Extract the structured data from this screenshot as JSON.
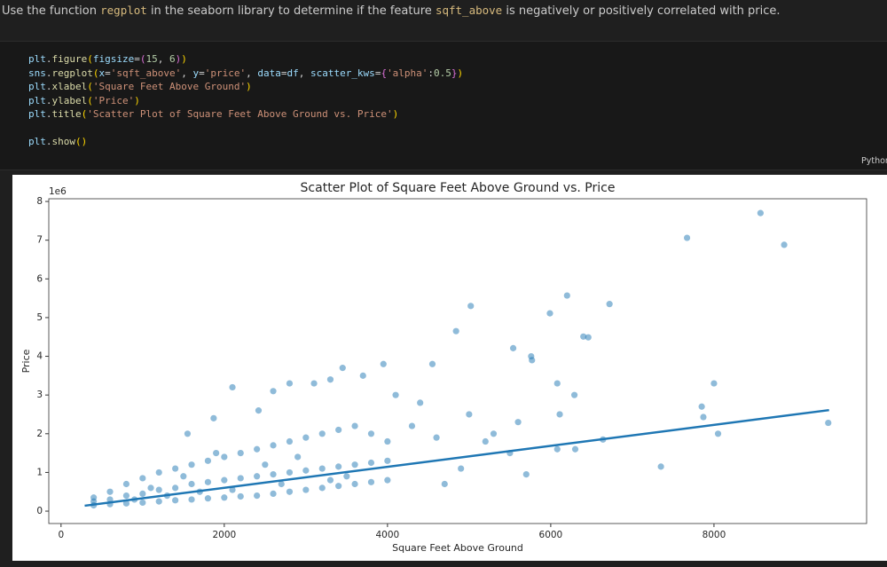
{
  "markdown": {
    "segments": [
      {
        "text": "Use the function ",
        "code": false
      },
      {
        "text": "regplot",
        "code": true
      },
      {
        "text": " in the seaborn library to determine if the feature ",
        "code": false
      },
      {
        "text": "sqft_above",
        "code": true
      },
      {
        "text": " is negatively or positively correlated with price.",
        "code": false
      }
    ]
  },
  "code": {
    "language": "Python",
    "lines": [
      {
        "tokens": [
          {
            "text": "plt",
            "color": "#9cdcfe"
          },
          {
            "text": ".",
            "color": "#d4d4d4"
          },
          {
            "text": "figure",
            "color": "#dcdcaa"
          },
          {
            "text": "(",
            "color": "#ffd700"
          },
          {
            "text": "figsize",
            "color": "#9cdcfe"
          },
          {
            "text": "=",
            "color": "#d4d4d4"
          },
          {
            "text": "(",
            "color": "#da70d6"
          },
          {
            "text": "15",
            "color": "#b5cea8"
          },
          {
            "text": ", ",
            "color": "#d4d4d4"
          },
          {
            "text": "6",
            "color": "#b5cea8"
          },
          {
            "text": ")",
            "color": "#da70d6"
          },
          {
            "text": ")",
            "color": "#ffd700"
          }
        ]
      },
      {
        "tokens": [
          {
            "text": "sns",
            "color": "#9cdcfe"
          },
          {
            "text": ".",
            "color": "#d4d4d4"
          },
          {
            "text": "regplot",
            "color": "#dcdcaa"
          },
          {
            "text": "(",
            "color": "#ffd700"
          },
          {
            "text": "x",
            "color": "#9cdcfe"
          },
          {
            "text": "=",
            "color": "#d4d4d4"
          },
          {
            "text": "'sqft_above'",
            "color": "#ce9178"
          },
          {
            "text": ", ",
            "color": "#d4d4d4"
          },
          {
            "text": "y",
            "color": "#9cdcfe"
          },
          {
            "text": "=",
            "color": "#d4d4d4"
          },
          {
            "text": "'price'",
            "color": "#ce9178"
          },
          {
            "text": ", ",
            "color": "#d4d4d4"
          },
          {
            "text": "data",
            "color": "#9cdcfe"
          },
          {
            "text": "=",
            "color": "#d4d4d4"
          },
          {
            "text": "df",
            "color": "#9cdcfe"
          },
          {
            "text": ", ",
            "color": "#d4d4d4"
          },
          {
            "text": "scatter_kws",
            "color": "#9cdcfe"
          },
          {
            "text": "=",
            "color": "#d4d4d4"
          },
          {
            "text": "{",
            "color": "#da70d6"
          },
          {
            "text": "'alpha'",
            "color": "#ce9178"
          },
          {
            "text": ":",
            "color": "#d4d4d4"
          },
          {
            "text": "0.5",
            "color": "#b5cea8"
          },
          {
            "text": "}",
            "color": "#da70d6"
          },
          {
            "text": ")",
            "color": "#ffd700"
          }
        ]
      },
      {
        "tokens": [
          {
            "text": "plt",
            "color": "#9cdcfe"
          },
          {
            "text": ".",
            "color": "#d4d4d4"
          },
          {
            "text": "xlabel",
            "color": "#dcdcaa"
          },
          {
            "text": "(",
            "color": "#ffd700"
          },
          {
            "text": "'Square Feet Above Ground'",
            "color": "#ce9178"
          },
          {
            "text": ")",
            "color": "#ffd700"
          }
        ]
      },
      {
        "tokens": [
          {
            "text": "plt",
            "color": "#9cdcfe"
          },
          {
            "text": ".",
            "color": "#d4d4d4"
          },
          {
            "text": "ylabel",
            "color": "#dcdcaa"
          },
          {
            "text": "(",
            "color": "#ffd700"
          },
          {
            "text": "'Price'",
            "color": "#ce9178"
          },
          {
            "text": ")",
            "color": "#ffd700"
          }
        ]
      },
      {
        "tokens": [
          {
            "text": "plt",
            "color": "#9cdcfe"
          },
          {
            "text": ".",
            "color": "#d4d4d4"
          },
          {
            "text": "title",
            "color": "#dcdcaa"
          },
          {
            "text": "(",
            "color": "#ffd700"
          },
          {
            "text": "'Scatter Plot of Square Feet Above Ground vs. Price'",
            "color": "#ce9178"
          },
          {
            "text": ")",
            "color": "#ffd700"
          }
        ]
      },
      {
        "tokens": []
      },
      {
        "tokens": [
          {
            "text": "plt",
            "color": "#9cdcfe"
          },
          {
            "text": ".",
            "color": "#d4d4d4"
          },
          {
            "text": "show",
            "color": "#dcdcaa"
          },
          {
            "text": "()",
            "color": "#ffd700"
          }
        ]
      }
    ]
  },
  "chart_data": {
    "type": "scatter",
    "title": "Scatter Plot of Square Feet Above Ground vs. Price",
    "x_label": "Square Feet Above Ground",
    "y_label": "Price",
    "y_offset_label": "1e6",
    "xlim": [
      -150,
      9870
    ],
    "ylim": [
      -0.32,
      8.07
    ],
    "xticks": [
      0,
      2000,
      4000,
      6000,
      8000
    ],
    "yticks": [
      0,
      1,
      2,
      3,
      4,
      5,
      6,
      7,
      8
    ],
    "color": "#1f77b4",
    "alpha": 0.5,
    "x": [
      8570,
      7670,
      8860,
      6200,
      6720,
      5990,
      5020,
      4840,
      6400,
      6460,
      5540,
      5760,
      5770,
      4550,
      8000,
      7850,
      7870,
      9400,
      7350,
      8050,
      6080,
      6290,
      6110,
      6640,
      6300,
      6080,
      5700,
      5500,
      5300,
      5000,
      4900,
      4700,
      4400,
      4100,
      3950,
      3700,
      3450,
      3300,
      3100,
      2800,
      2600,
      2100,
      2420,
      1870,
      1550,
      1900,
      5200,
      5600,
      4300,
      4600,
      400,
      400,
      400,
      600,
      600,
      600,
      800,
      800,
      800,
      1000,
      1000,
      1000,
      1200,
      1200,
      1200,
      1400,
      1400,
      1400,
      1600,
      1600,
      1600,
      1800,
      1800,
      1800,
      2000,
      2000,
      2000,
      2200,
      2200,
      2200,
      2400,
      2400,
      2400,
      2600,
      2600,
      2600,
      2800,
      2800,
      2800,
      3000,
      3000,
      3000,
      3200,
      3200,
      3200,
      3400,
      3400,
      3400,
      3600,
      3600,
      3600,
      3800,
      3800,
      3800,
      4000,
      4000,
      4000,
      1100,
      1500,
      2500,
      2900,
      3500,
      900,
      1300,
      1700,
      2100,
      2700,
      3300
    ],
    "values": [
      7.7,
      7.06,
      6.88,
      5.57,
      5.35,
      5.11,
      5.3,
      4.65,
      4.51,
      4.49,
      4.21,
      4.0,
      3.9,
      3.8,
      3.3,
      2.7,
      2.43,
      2.28,
      1.15,
      2.0,
      3.3,
      3.0,
      2.5,
      1.85,
      1.6,
      1.6,
      0.95,
      1.5,
      2.0,
      2.5,
      1.1,
      0.7,
      2.8,
      3.0,
      3.8,
      3.5,
      3.7,
      3.4,
      3.3,
      3.3,
      3.1,
      3.2,
      2.6,
      2.4,
      2.0,
      1.5,
      1.8,
      2.3,
      2.2,
      1.9,
      0.15,
      0.25,
      0.35,
      0.18,
      0.3,
      0.5,
      0.2,
      0.4,
      0.7,
      0.22,
      0.45,
      0.85,
      0.25,
      0.55,
      1.0,
      0.28,
      0.6,
      1.1,
      0.3,
      0.7,
      1.2,
      0.33,
      0.75,
      1.3,
      0.35,
      0.8,
      1.4,
      0.38,
      0.85,
      1.5,
      0.4,
      0.9,
      1.6,
      0.45,
      0.95,
      1.7,
      0.5,
      1.0,
      1.8,
      0.55,
      1.05,
      1.9,
      0.6,
      1.1,
      2.0,
      0.65,
      1.15,
      2.1,
      0.7,
      1.2,
      2.2,
      0.75,
      1.25,
      2.0,
      0.8,
      1.3,
      1.8,
      0.6,
      0.9,
      1.2,
      1.4,
      0.9,
      0.3,
      0.4,
      0.5,
      0.55,
      0.7,
      0.8
    ],
    "regression": {
      "color": "#1f77b4",
      "x": [
        290,
        9410
      ],
      "values": [
        0.14,
        2.61
      ]
    }
  }
}
